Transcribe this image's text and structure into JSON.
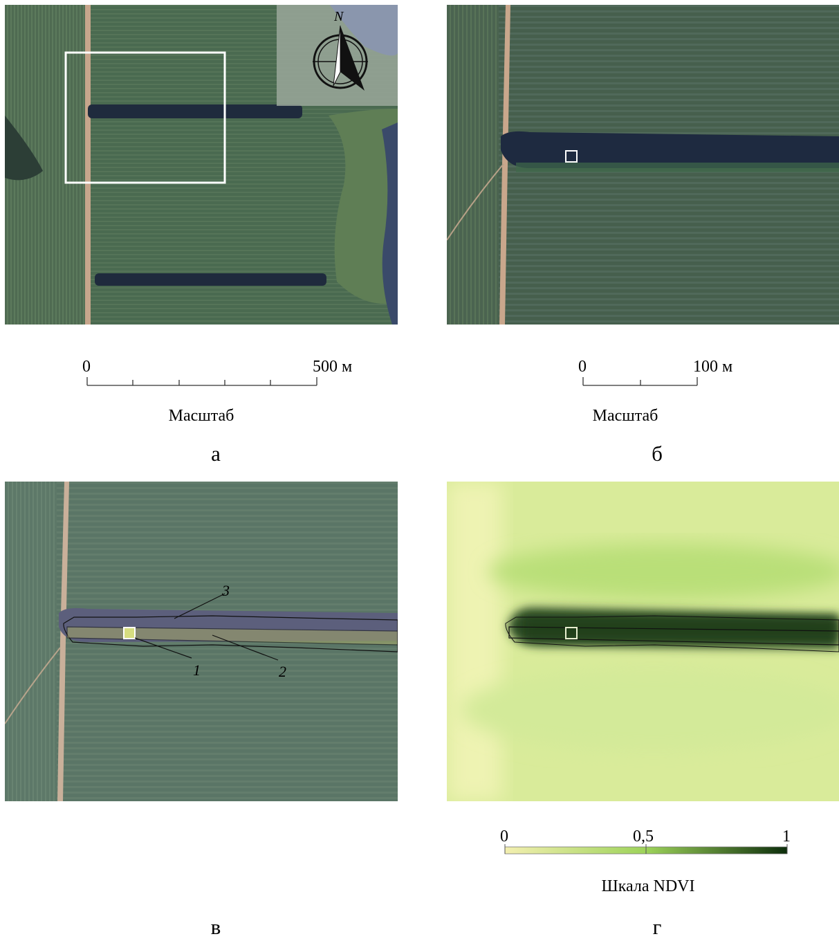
{
  "panels": {
    "a": {
      "letter": "а",
      "scale": {
        "start": "0",
        "end": "500 м",
        "title": "Масштаб"
      },
      "north_arrow": {
        "label": "N",
        "icon": "north-arrow-icon"
      }
    },
    "b": {
      "letter": "б",
      "scale": {
        "start": "0",
        "end": "100 м",
        "title": "Масштаб"
      }
    },
    "c": {
      "letter": "в",
      "callouts": [
        "1",
        "2",
        "3"
      ]
    },
    "d": {
      "letter": "г",
      "ndvi_scale": {
        "start": "0",
        "mid": "0,5",
        "end": "1",
        "title": "Шкала NDVI"
      },
      "colors": {
        "low": "#f3efb0",
        "mid": "#9dd35a",
        "high": "#0c2d0b"
      }
    }
  }
}
